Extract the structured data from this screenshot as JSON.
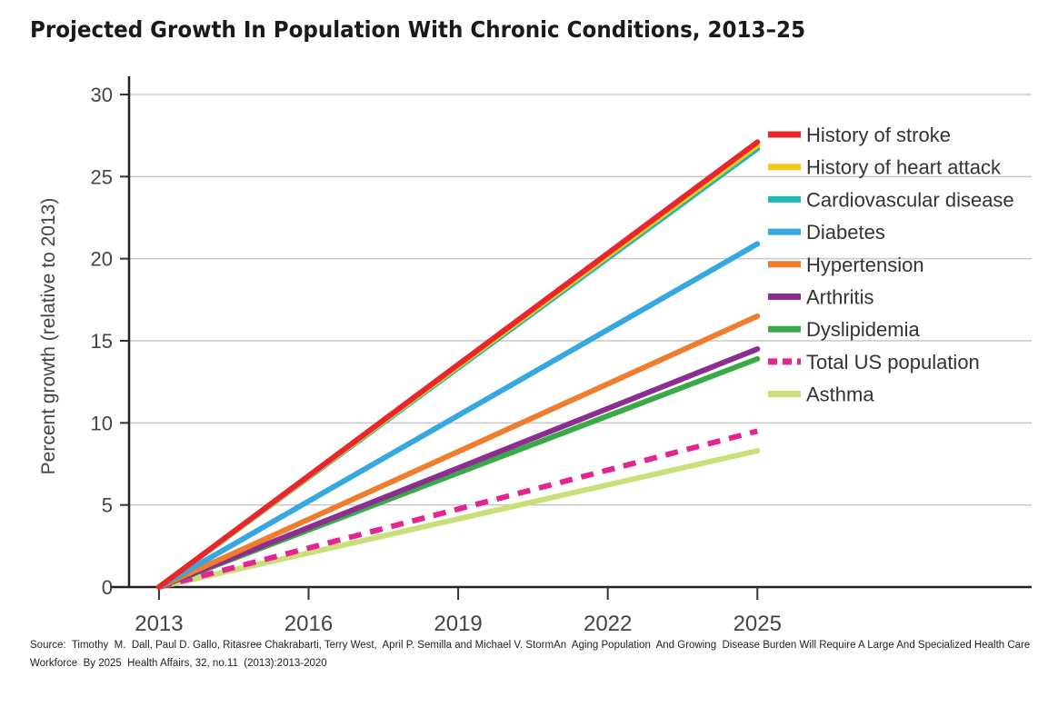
{
  "chart_data": {
    "type": "line",
    "title": "Projected Growth In Population With Chronic Conditions, 2013–25",
    "ylabel": "Percent growth (relative to 2013)",
    "xlabel": "",
    "x": [
      2013,
      2025
    ],
    "x_ticks": [
      "2013",
      "2016",
      "2019",
      "2022",
      "2025"
    ],
    "y_ticks": [
      "0",
      "5",
      "10",
      "15",
      "20",
      "25",
      "30"
    ],
    "xlim": [
      2012.4,
      2030.5
    ],
    "ylim": [
      0,
      30
    ],
    "grid": true,
    "legend_position": "right",
    "series": [
      {
        "name": "History of stroke",
        "values": [
          0,
          27.1
        ],
        "color": "#e8262c",
        "dashed": false
      },
      {
        "name": "History of heart attack",
        "values": [
          0,
          26.9
        ],
        "color": "#f2c81b",
        "dashed": false
      },
      {
        "name": "Cardiovascular disease",
        "values": [
          0,
          26.7
        ],
        "color": "#1fb7b2",
        "dashed": false
      },
      {
        "name": "Diabetes",
        "values": [
          0,
          20.9
        ],
        "color": "#34a8df",
        "dashed": false
      },
      {
        "name": "Hypertension",
        "values": [
          0,
          16.5
        ],
        "color": "#f07d2e",
        "dashed": false
      },
      {
        "name": "Arthritis",
        "values": [
          0,
          14.5
        ],
        "color": "#8b2e8f",
        "dashed": false
      },
      {
        "name": "Dyslipidemia",
        "values": [
          0,
          13.9
        ],
        "color": "#3aaa48",
        "dashed": false
      },
      {
        "name": "Total US population",
        "values": [
          0,
          9.5
        ],
        "color": "#e5248f",
        "dashed": true
      },
      {
        "name": "Asthma",
        "values": [
          0,
          8.3
        ],
        "color": "#c9df78",
        "dashed": false
      }
    ]
  },
  "source_text": "Source:  Timothy  M.  Dall, Paul D. Gallo, Ritasree Chakrabarti, Terry West,  April P. Semilla and Michael V. StormAn  Aging Population  And Growing  Disease Burden Will Require A Large And Specialized Health Care Workforce  By 2025  Health Affairs, 32, no.11  (2013):2013-2020"
}
